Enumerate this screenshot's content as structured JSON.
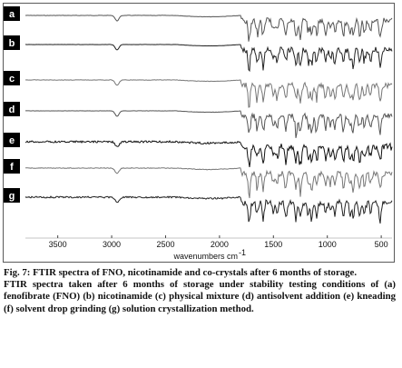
{
  "chart_data": {
    "type": "line",
    "xlabel": "wavenumbers cm",
    "xlabel_superscript": "-1",
    "x_ticks": [
      3500,
      3000,
      2500,
      2000,
      1500,
      1000,
      500
    ],
    "xlim": [
      3800,
      400
    ],
    "series": [
      {
        "name": "a",
        "color": "#555555",
        "noise": 0.06
      },
      {
        "name": "b",
        "color": "#222222",
        "noise": 0.03
      },
      {
        "name": "c",
        "color": "#777777",
        "noise": 0.08
      },
      {
        "name": "d",
        "color": "#555555",
        "noise": 0.05
      },
      {
        "name": "e",
        "color": "#111111",
        "noise": 0.35
      },
      {
        "name": "f",
        "color": "#777777",
        "noise": 0.12
      },
      {
        "name": "g",
        "color": "#222222",
        "noise": 0.3
      }
    ]
  },
  "caption": {
    "title": "Fig. 7: FTIR spectra of FNO, nicotinamide and co-crystals after 6 months of storage.",
    "body": "FTIR spectra taken after 6 months of storage under stability testing conditions of (a) fenofibrate (FNO) (b) nicotinamide (c) physical mixture (d) antisolvent addition (e) kneading (f) solvent drop grinding (g) solution crystallization method."
  }
}
